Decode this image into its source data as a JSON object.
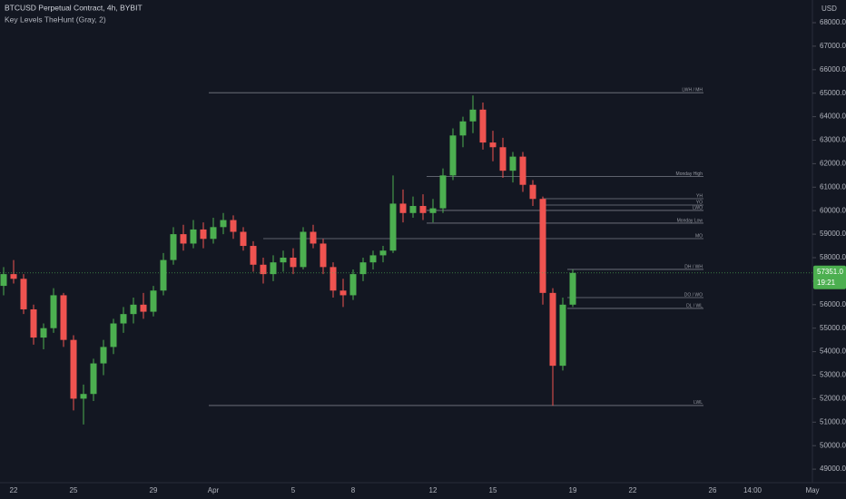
{
  "chart_data": {
    "type": "candlestick",
    "title": "BTCUSD Perpetual Contract, 4h, BYBIT",
    "subtitle": "Key Levels TheHunt (Gray, 2)",
    "currency": "USD",
    "countdown": "19:21",
    "last_price": {
      "value": 57351,
      "label": "57351.0"
    },
    "up_color": "#4caf50",
    "down_color": "#ef5350",
    "level_color": "#787b86",
    "categories": [
      null,
      "22",
      null,
      null,
      null,
      null,
      null,
      "25",
      null,
      null,
      null,
      null,
      null,
      null,
      null,
      "29",
      null,
      null,
      null,
      null,
      null,
      "Apr",
      null,
      null,
      null,
      null,
      null,
      null,
      null,
      "5",
      null,
      null,
      null,
      null,
      null,
      "8",
      null,
      null,
      null,
      null,
      null,
      null,
      null,
      "12",
      null,
      null,
      null,
      null,
      null,
      "15",
      null,
      null,
      null,
      null,
      null,
      null,
      null,
      "19",
      null,
      null,
      null,
      null,
      null,
      "22",
      null,
      null,
      null,
      null,
      null,
      null,
      null,
      "26",
      null,
      null,
      null,
      "14:00",
      null,
      null,
      null,
      null,
      null,
      "May",
      null
    ],
    "open": [
      56800,
      57300,
      57100,
      55800,
      54600,
      55000,
      56400,
      54500,
      52000,
      52200,
      53500,
      54200,
      55200,
      55600,
      56000,
      55700,
      56600,
      57900,
      59000,
      58600,
      59200,
      58800,
      59300,
      59600,
      59100,
      58500,
      57700,
      57300,
      57800,
      58000,
      57600,
      59100,
      58600,
      57600,
      56600,
      56400,
      57300,
      57800,
      58100,
      58300,
      60300,
      59900,
      60200,
      59900,
      60100,
      61500,
      63200,
      63800,
      64300,
      62900,
      62700,
      61700,
      62300,
      61100,
      60500,
      56500,
      53400,
      56000,
      null,
      null,
      null,
      null,
      null,
      null,
      null,
      null,
      null,
      null,
      null,
      null,
      null,
      null,
      null,
      null,
      null,
      null,
      null,
      null,
      null,
      null,
      null,
      null,
      null
    ],
    "high": [
      57600,
      57900,
      57300,
      56000,
      55200,
      56700,
      56500,
      54700,
      52600,
      53700,
      54500,
      55400,
      55900,
      56300,
      56500,
      56800,
      58200,
      59300,
      59400,
      59600,
      59500,
      59700,
      59900,
      59800,
      59300,
      58700,
      58000,
      58100,
      58300,
      58400,
      59300,
      59400,
      58800,
      57800,
      57100,
      57500,
      58000,
      58300,
      58500,
      61500,
      60900,
      60600,
      60700,
      60500,
      61800,
      63500,
      64000,
      64900,
      64600,
      63400,
      63100,
      62500,
      62500,
      61300,
      60600,
      56700,
      56300,
      57500,
      null,
      null,
      null,
      null,
      null,
      null,
      null,
      null,
      null,
      null,
      null,
      null,
      null,
      null,
      null,
      null,
      null,
      null,
      null,
      null,
      null,
      null,
      null,
      null,
      null
    ],
    "low": [
      56400,
      56900,
      55600,
      54300,
      54100,
      54800,
      54200,
      51500,
      50900,
      51900,
      53000,
      53900,
      54800,
      55200,
      55400,
      55500,
      56400,
      57700,
      58300,
      58400,
      58400,
      58600,
      59000,
      58800,
      58300,
      57400,
      56900,
      57000,
      57400,
      57300,
      57500,
      58400,
      57300,
      56300,
      55900,
      56200,
      57000,
      57500,
      57800,
      58200,
      59500,
      59700,
      59600,
      59500,
      59900,
      61300,
      62700,
      63300,
      62600,
      62100,
      61400,
      61200,
      60800,
      60200,
      56000,
      51700,
      53200,
      55900,
      null,
      null,
      null,
      null,
      null,
      null,
      null,
      null,
      null,
      null,
      null,
      null,
      null,
      null,
      null,
      null,
      null,
      null,
      null,
      null,
      null,
      null,
      null,
      null,
      null
    ],
    "close": [
      57300,
      57100,
      55800,
      54600,
      55000,
      56400,
      54500,
      52000,
      52200,
      53500,
      54200,
      55200,
      55600,
      56000,
      55700,
      56600,
      57900,
      59000,
      58600,
      59200,
      58800,
      59300,
      59600,
      59100,
      58500,
      57700,
      57300,
      57800,
      58000,
      57600,
      59100,
      58600,
      57600,
      56600,
      56400,
      57300,
      57800,
      58100,
      58300,
      60300,
      59900,
      60200,
      59900,
      60100,
      61500,
      63200,
      63800,
      64300,
      62900,
      62700,
      61700,
      62300,
      61100,
      60500,
      56500,
      53400,
      56000,
      57351,
      null,
      null,
      null,
      null,
      null,
      null,
      null,
      null,
      null,
      null,
      null,
      null,
      null,
      null,
      null,
      null,
      null,
      null,
      null,
      null,
      null,
      null,
      null,
      null,
      null
    ],
    "levels": [
      {
        "label": "LWH / MH",
        "value": 65020
      },
      {
        "label": "Monday High",
        "value": 61450
      },
      {
        "label": "YH",
        "value": 60510
      },
      {
        "label": "YO",
        "value": 60240
      },
      {
        "label": "LWO",
        "value": 60010
      },
      {
        "label": "Monday Low",
        "value": 59470
      },
      {
        "label": "MO",
        "value": 58810
      },
      {
        "label": "DH / WH",
        "value": 57500
      },
      {
        "label": "DO / WO",
        "value": 56300
      },
      {
        "label": "DL / WL",
        "value": 55840
      },
      {
        "label": "LWL",
        "value": 51710
      }
    ],
    "ylim": [
      48425,
      68965
    ],
    "yticks": [
      {
        "value": 49000,
        "label": "49000.0"
      },
      {
        "value": 50000,
        "label": "50000.0"
      },
      {
        "value": 51000,
        "label": "51000.0"
      },
      {
        "value": 52000,
        "label": "52000.0"
      },
      {
        "value": 53000,
        "label": "53000.0"
      },
      {
        "value": 54000,
        "label": "54000.0"
      },
      {
        "value": 55000,
        "label": "55000.0"
      },
      {
        "value": 56000,
        "label": "56000.0"
      },
      {
        "value": 57000,
        "label": "57000.0"
      },
      {
        "value": 58000,
        "label": "58000.0"
      },
      {
        "value": 59000,
        "label": "59000.0"
      },
      {
        "value": 60000,
        "label": "60000.0"
      },
      {
        "value": 61000,
        "label": "61000.0"
      },
      {
        "value": 62000,
        "label": "62000.0"
      },
      {
        "value": 63000,
        "label": "63000.0"
      },
      {
        "value": 64000,
        "label": "64000.0"
      },
      {
        "value": 65000,
        "label": "65000.0"
      },
      {
        "value": 66000,
        "label": "66000.0"
      },
      {
        "value": 67000,
        "label": "67000.0"
      },
      {
        "value": 68000,
        "label": "68000.0"
      }
    ]
  }
}
